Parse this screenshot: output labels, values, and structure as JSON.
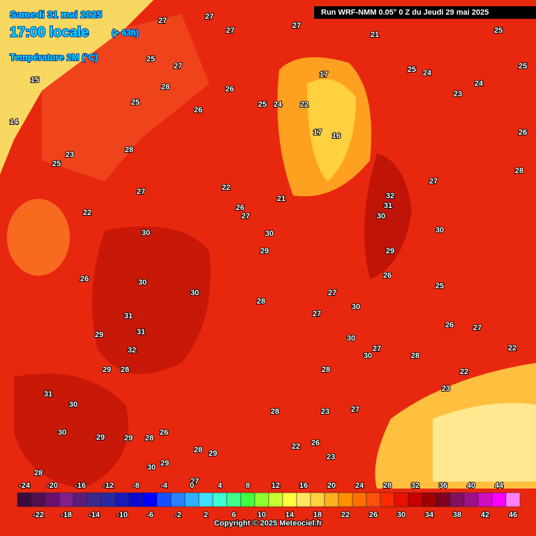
{
  "header": {
    "date": "Samedi 31 mai 2025",
    "time": "17:00 locale",
    "lead": "(+ 63h)",
    "parameter": "Température 2M (°C)",
    "run": "Run WRF-NMM 0.05° 0 Z du Jeudi 29 mai 2025"
  },
  "map_labels": [
    27,
    27,
    27,
    27,
    21,
    25,
    25,
    27,
    15,
    28,
    26,
    17,
    25,
    24,
    25,
    25,
    26,
    25,
    24,
    22,
    16,
    17,
    23,
    24,
    26,
    14,
    23,
    28,
    25,
    28,
    27,
    22,
    21,
    27,
    32,
    31,
    22,
    26,
    27,
    30,
    30,
    30,
    30,
    29,
    29,
    26,
    30,
    30,
    28,
    27,
    26,
    25,
    31,
    30,
    27,
    26,
    27,
    31,
    29,
    32,
    30,
    27,
    30,
    28,
    22,
    22,
    29,
    28,
    28,
    31,
    30,
    23,
    28,
    23,
    27,
    30,
    29,
    29,
    28,
    26,
    22,
    26,
    23,
    28,
    28,
    29,
    29,
    30,
    27
  ],
  "legend": {
    "values": [
      -24,
      -22,
      -20,
      -18,
      -16,
      -14,
      -12,
      -10,
      -8,
      -6,
      -4,
      -2,
      0,
      2,
      4,
      6,
      8,
      10,
      12,
      14,
      16,
      18,
      20,
      22,
      24,
      26,
      28,
      30,
      32,
      34,
      36,
      38,
      40,
      42,
      44,
      46
    ],
    "colors": [
      "#3c0a3c",
      "#50104f",
      "#6a1070",
      "#80208a",
      "#5a1e7a",
      "#3a2a8a",
      "#2a2aa0",
      "#1a1ab8",
      "#0a0ad0",
      "#0000ff",
      "#1450ff",
      "#2a80ff",
      "#30b0ff",
      "#40e0ff",
      "#40ffd0",
      "#40ff90",
      "#40ff40",
      "#90ff30",
      "#c8ff30",
      "#ffff40",
      "#ffe860",
      "#ffd040",
      "#ffb020",
      "#ff9000",
      "#ff7000",
      "#ff5010",
      "#ff2a00",
      "#e81000",
      "#c80000",
      "#a00000",
      "#800020",
      "#801060",
      "#a0108a",
      "#d010c0",
      "#ff00ff",
      "#ff80ff"
    ]
  },
  "footer": {
    "copyright": "Copyright © 2025 Meteociel.fr"
  }
}
